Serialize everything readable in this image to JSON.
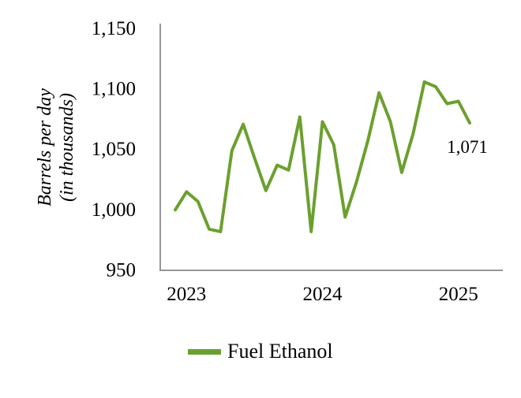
{
  "chart": {
    "y_axis_title_line1": "Barrels per day",
    "y_axis_title_line2": "(in thousands)"
  },
  "chart_data": {
    "type": "line",
    "title": "",
    "xlabel": "",
    "ylabel": "Barrels per day (in thousands)",
    "x": [
      "Jan 2023",
      "Feb 2023",
      "Mar 2023",
      "Apr 2023",
      "May 2023",
      "Jun 2023",
      "Jul 2023",
      "Aug 2023",
      "Sep 2023",
      "Oct 2023",
      "Nov 2023",
      "Dec 2023",
      "Jan 2024",
      "Feb 2024",
      "Mar 2024",
      "Apr 2024",
      "May 2024",
      "Jun 2024",
      "Jul 2024",
      "Aug 2024",
      "Sep 2024",
      "Oct 2024",
      "Nov 2024",
      "Dec 2024",
      "Jan 2025",
      "Feb 2025",
      "Mar 2025"
    ],
    "series": [
      {
        "name": "Fuel Ethanol",
        "color": "#6BA02F",
        "values": [
          999,
          1014,
          1006,
          983,
          981,
          1048,
          1070,
          1042,
          1015,
          1036,
          1032,
          1076,
          981,
          1072,
          1053,
          993,
          1022,
          1056,
          1096,
          1072,
          1030,
          1062,
          1105,
          1101,
          1087,
          1089,
          1071
        ]
      }
    ],
    "ylim": [
      950,
      1150
    ],
    "yticks": [
      950,
      1000,
      1050,
      1100,
      1150
    ],
    "yticklabels": [
      "950",
      "1,000",
      "1,050",
      "1,100",
      "1,150"
    ],
    "xticklabels": [
      "2023",
      "2024",
      "2025"
    ],
    "grid": false,
    "legend_position": "bottom",
    "annotations": [
      {
        "text": "1,071",
        "series": "Fuel Ethanol",
        "point_index": 26,
        "value": 1071
      }
    ]
  }
}
